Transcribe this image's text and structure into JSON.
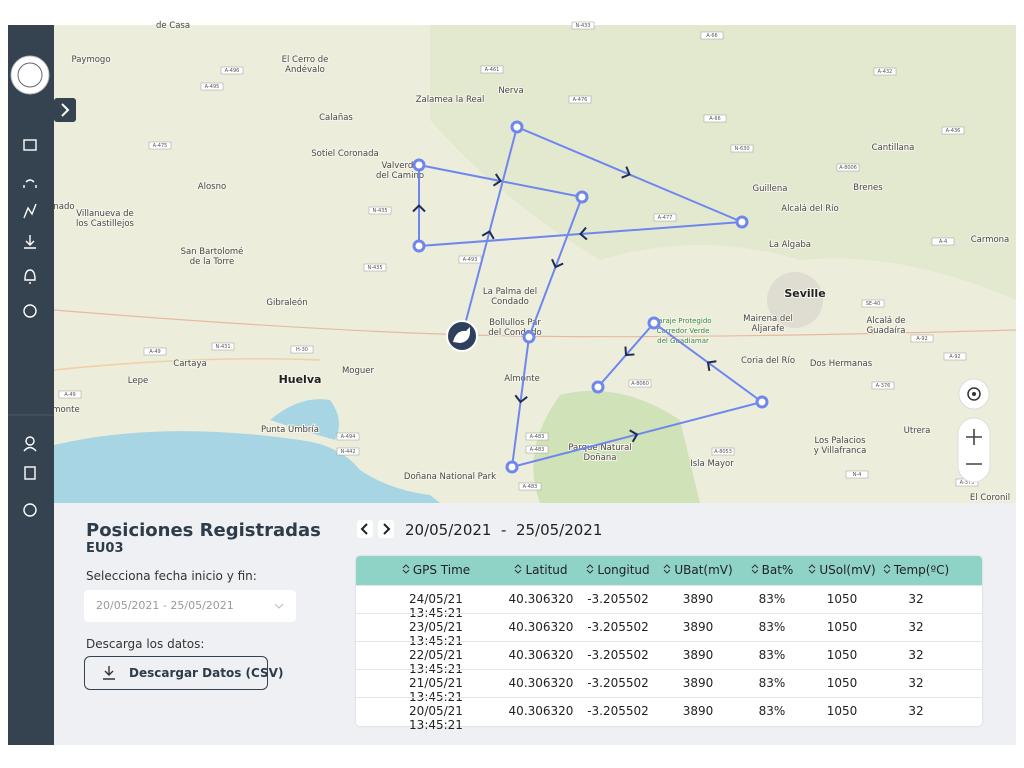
{
  "map": {
    "places": [
      [
        "de Casa"
      ],
      [
        "Paymogo"
      ],
      [
        "El Cerro de",
        "Andévalo"
      ],
      [
        "Zalamea la Real"
      ],
      [
        "Nerva"
      ],
      [
        "Calañas"
      ],
      [
        "Sotiel Coronada"
      ],
      [
        "Valverde",
        "del Camino"
      ],
      [
        "Alosno"
      ],
      [
        "Villanueva de",
        "los Castillejos"
      ],
      [
        "San Bartolomé",
        "de la Torre"
      ],
      [
        "Gibraleón"
      ],
      [
        "La Palma del",
        "Condado"
      ],
      [
        "Bollullos Par",
        "del Condado"
      ],
      [
        "Cartaya"
      ],
      [
        "Lepe"
      ],
      [
        "Huelva"
      ],
      [
        "Moguer"
      ],
      [
        "Almonte"
      ],
      [
        "Punta Umbría"
      ],
      [
        "Doñana National Park"
      ],
      [
        "Parque Natural",
        "Doñana"
      ],
      [
        "Isla Mayor"
      ],
      [
        "Seville"
      ],
      [
        "Mairena del",
        "Aljarafe"
      ],
      [
        "Alcalá de",
        "Guadaíra"
      ],
      [
        "Coria del Río"
      ],
      [
        "Dos Hermanas"
      ],
      [
        "Los Palacios",
        "y Villafranca"
      ],
      [
        "Utrera"
      ],
      [
        "Cantillana"
      ],
      [
        "Brenes"
      ],
      [
        "Guillena"
      ],
      [
        "Alcalá del Río"
      ],
      [
        "La Algaba"
      ],
      [
        "Carmona"
      ],
      [
        "El Coronil"
      ],
      [
        "Paraje Protegido",
        "Corredor Verde",
        "del Guadiamar"
      ],
      [
        "nado"
      ],
      [
        "monte"
      ]
    ],
    "roads": [
      "A-496",
      "A-495",
      "A-461",
      "A-476",
      "A-475",
      "N-435",
      "N-435",
      "A-493",
      "A-477",
      "N-433",
      "A-66",
      "A-66",
      "N-630",
      "A-8006",
      "A-432",
      "A-436",
      "A-4",
      "SE-40",
      "A-92",
      "A-92",
      "A-376",
      "N-431",
      "H-30",
      "A-49",
      "A-49",
      "A-494",
      "N-442",
      "A-483",
      "A-483",
      "A-483",
      "A-8060",
      "A-8053",
      "N-4",
      "A-375"
    ]
  },
  "panel": {
    "title": "Posiciones Registradas",
    "subtitle": "EU03",
    "date_label": "Selecciona fecha inicio y fin:",
    "date_select": "20/05/2021 - 25/05/2021",
    "download_label": "Descarga los datos:",
    "download_button": "Descargar Datos (CSV)"
  },
  "table": {
    "date_range": "20/05/2021  -  25/05/2021",
    "columns": [
      "GPS Time",
      "Latitud",
      "Longitud",
      "UBat(mV)",
      "Bat%",
      "USol(mV)",
      "Temp(ºC)"
    ],
    "rows": [
      [
        "24/05/21 13:45:21",
        "40.306320",
        "-3.205502",
        "3890",
        "83%",
        "1050",
        "32"
      ],
      [
        "23/05/21 13:45:21",
        "40.306320",
        "-3.205502",
        "3890",
        "83%",
        "1050",
        "32"
      ],
      [
        "22/05/21 13:45:21",
        "40.306320",
        "-3.205502",
        "3890",
        "83%",
        "1050",
        "32"
      ],
      [
        "21/05/21 13:45:21",
        "40.306320",
        "-3.205502",
        "3890",
        "83%",
        "1050",
        "32"
      ],
      [
        "20/05/21 13:45:21",
        "40.306320",
        "-3.205502",
        "3890",
        "83%",
        "1050",
        "32"
      ]
    ]
  }
}
